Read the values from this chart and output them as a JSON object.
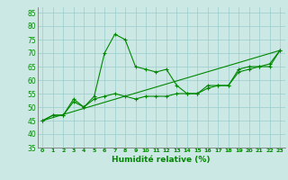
{
  "xlabel": "Humidité relative (%)",
  "background_color": "#cce8e4",
  "grid_color": "#99cccc",
  "line_color": "#008800",
  "xlim": [
    -0.5,
    23.5
  ],
  "ylim": [
    35,
    87
  ],
  "yticks": [
    35,
    40,
    45,
    50,
    55,
    60,
    65,
    70,
    75,
    80,
    85
  ],
  "xticks": [
    0,
    1,
    2,
    3,
    4,
    5,
    6,
    7,
    8,
    9,
    10,
    11,
    12,
    13,
    14,
    15,
    16,
    17,
    18,
    19,
    20,
    21,
    22,
    23
  ],
  "line1_x": [
    0,
    1,
    2,
    3,
    4,
    5,
    6,
    7,
    8,
    9,
    10,
    11,
    12,
    13,
    14,
    15,
    16,
    17,
    18,
    19,
    20,
    21,
    22,
    23
  ],
  "line1_y": [
    45,
    47,
    47,
    53,
    50,
    54,
    70,
    77,
    75,
    65,
    64,
    63,
    64,
    58,
    55,
    55,
    58,
    58,
    58,
    64,
    65,
    65,
    66,
    71
  ],
  "line2_x": [
    0,
    1,
    2,
    3,
    4,
    5,
    6,
    7,
    8,
    9,
    10,
    11,
    12,
    13,
    14,
    15,
    16,
    17,
    18,
    19,
    20,
    21,
    22,
    23
  ],
  "line2_y": [
    45,
    47,
    47,
    52,
    50,
    53,
    54,
    55,
    54,
    53,
    54,
    54,
    54,
    55,
    55,
    55,
    57,
    58,
    58,
    63,
    64,
    65,
    65,
    71
  ],
  "line3_x": [
    0,
    23
  ],
  "line3_y": [
    45,
    71
  ]
}
